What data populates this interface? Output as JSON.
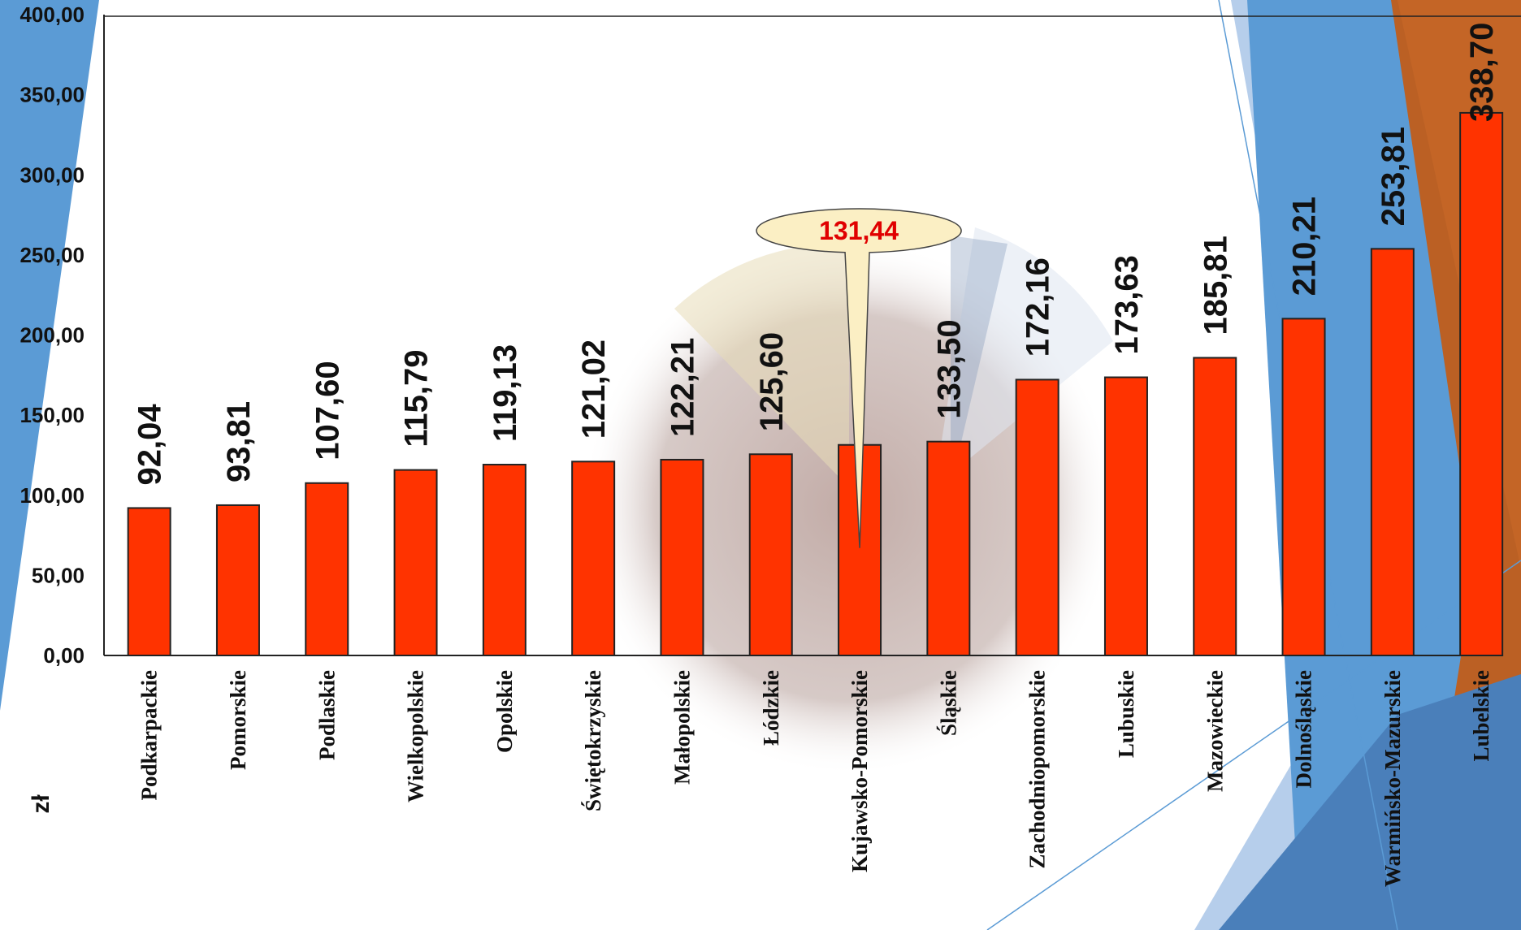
{
  "chart_data": {
    "type": "bar",
    "ylabel": "zł",
    "ylim": [
      0,
      400
    ],
    "yticks": [
      "0,00",
      "50,00",
      "100,00",
      "150,00",
      "200,00",
      "250,00",
      "300,00",
      "350,00",
      "400,00"
    ],
    "categories": [
      "Podkarpackie",
      "Pomorskie",
      "Podlaskie",
      "Wielkopolskie",
      "Opolskie",
      "Świętokrzyskie",
      "Małopolskie",
      "Łódzkie",
      "Kujawsko-Pomorskie",
      "Śląskie",
      "Zachodniopomorskie",
      "Lubuskie",
      "Mazowieckie",
      "Dolnośląskie",
      "Warmińsko-Mazurskie",
      "Lubelskie"
    ],
    "values": [
      92.04,
      93.81,
      107.6,
      115.79,
      119.13,
      121.02,
      122.21,
      125.6,
      131.44,
      133.5,
      172.16,
      173.63,
      185.81,
      210.21,
      253.81,
      338.7
    ],
    "value_labels": [
      "92,04",
      "93,81",
      "107,60",
      "115,79",
      "119,13",
      "121,02",
      "122,21",
      "125,60",
      "",
      "133,50",
      "172,16",
      "173,63",
      "185,81",
      "210,21",
      "253,81",
      "338,70"
    ],
    "callout": {
      "category": "Kujawsko-Pomorskie",
      "text": "131,44"
    },
    "grid": false,
    "legend": "none"
  },
  "colors": {
    "bar": "#ff3300",
    "callout_fill": "#fbefc4",
    "callout_text": "#e00000",
    "theme_blue": "#5b9bd5",
    "theme_orange": "#c55a11"
  }
}
